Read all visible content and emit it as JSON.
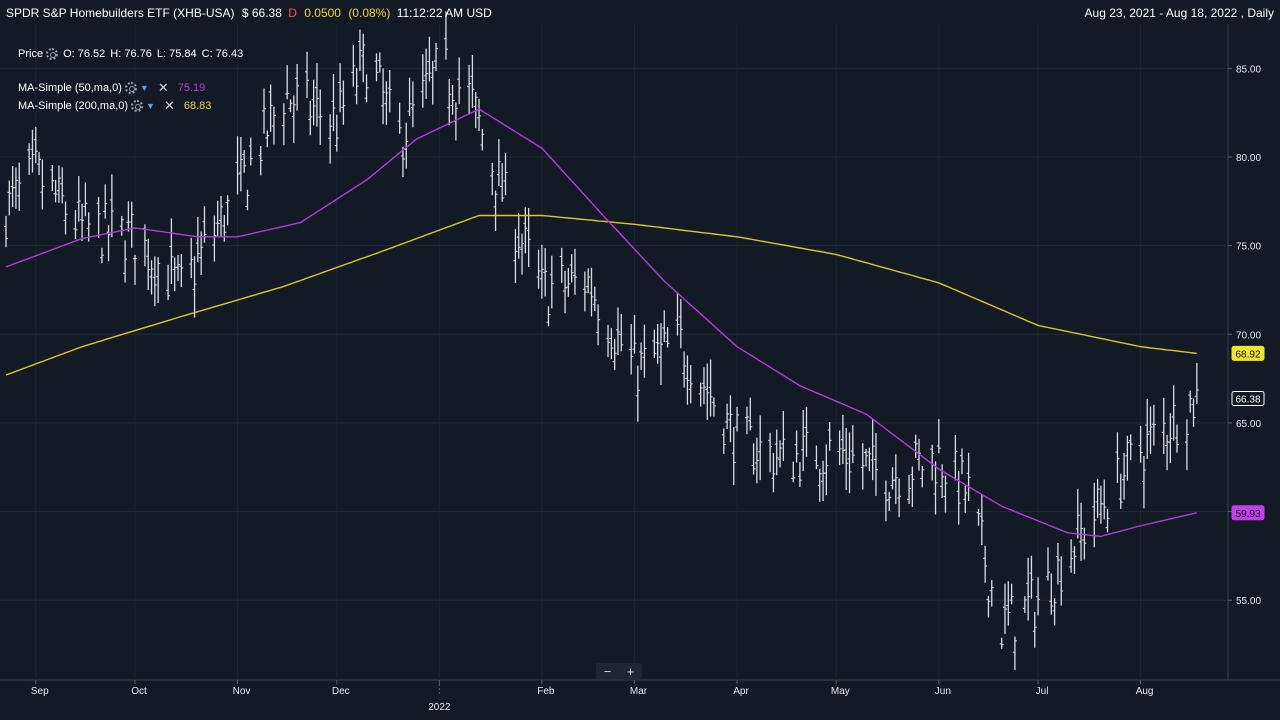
{
  "header": {
    "symbol_title": "SPDR S&P Homebuilders ETF (XHB-USA)",
    "price": "$ 66.38",
    "delayed_flag": "D",
    "change": "0.0500",
    "change_pct": "(0.08%)",
    "time": "11:12:22 AM USD",
    "date_range": "Aug 23, 2021 - Aug 18, 2022 , Daily"
  },
  "legend": {
    "price": {
      "label": "Price",
      "o": "O: 76.52",
      "h": "H: 76.76",
      "l": "L: 75.84",
      "c": "C: 76.43"
    },
    "ma50": {
      "label": "MA-Simple (50,ma,0)",
      "value": "75.19",
      "color": "#b03cd8"
    },
    "ma200": {
      "label": "MA-Simple (200,ma,0)",
      "value": "68.83",
      "color": "#d8c62a"
    }
  },
  "zoom": {
    "minus": "−",
    "plus": "+"
  },
  "chart_data": {
    "type": "line",
    "title": "SPDR S&P Homebuilders ETF (XHB-USA)",
    "xlabel": "",
    "ylabel": "",
    "x_tick_labels": [
      "Sep",
      "Oct",
      "Nov",
      "Dec",
      "2022",
      "Feb",
      "Mar",
      "Apr",
      "May",
      "Jun",
      "Jul",
      "Aug"
    ],
    "x_year_label": "2022",
    "y_tick_labels": [
      "55.00",
      "60.00",
      "65.00",
      "70.00",
      "75.00",
      "80.00",
      "85.00"
    ],
    "ylim": [
      50.5,
      87.5
    ],
    "grid": true,
    "last_value_labels": [
      {
        "series": "MA-Simple (200,ma,0)",
        "value": "68.92",
        "color": "#f2e530"
      },
      {
        "series": "Price",
        "value": "66.38",
        "color": "#ffffff"
      },
      {
        "series": "MA-Simple (50,ma,0)",
        "value": "59.93",
        "color": "#c33ee6"
      }
    ],
    "series": [
      {
        "name": "Price",
        "kind": "ohlc-bars",
        "x": [
          "2021-08-23",
          "2021-09-01",
          "2021-09-15",
          "2021-10-01",
          "2021-10-15",
          "2021-11-01",
          "2021-11-15",
          "2021-12-01",
          "2021-12-10",
          "2021-12-20",
          "2022-01-01",
          "2022-01-10",
          "2022-01-20",
          "2022-02-01",
          "2022-02-15",
          "2022-03-01",
          "2022-03-15",
          "2022-04-01",
          "2022-04-15",
          "2022-05-01",
          "2022-05-15",
          "2022-06-01",
          "2022-06-10",
          "2022-06-20",
          "2022-07-01",
          "2022-07-15",
          "2022-08-01",
          "2022-08-18"
        ],
        "values": [
          77.0,
          79.0,
          76.0,
          75.5,
          72.5,
          78.0,
          83.5,
          82.0,
          85.5,
          81.0,
          85.0,
          83.5,
          78.0,
          72.5,
          73.0,
          68.0,
          69.5,
          64.0,
          63.0,
          63.5,
          62.0,
          63.0,
          61.0,
          53.5,
          55.0,
          59.0,
          63.5,
          66.4
        ]
      },
      {
        "name": "MA-Simple (50,ma,0)",
        "x": [
          "2021-08-23",
          "2021-09-15",
          "2021-10-01",
          "2021-10-20",
          "2021-11-01",
          "2021-11-20",
          "2021-12-10",
          "2021-12-25",
          "2022-01-13",
          "2022-02-01",
          "2022-02-20",
          "2022-03-10",
          "2022-04-01",
          "2022-04-20",
          "2022-05-10",
          "2022-06-01",
          "2022-06-20",
          "2022-07-10",
          "2022-07-20",
          "2022-08-01",
          "2022-08-18"
        ],
        "values": [
          73.8,
          75.4,
          76.0,
          75.5,
          75.5,
          76.3,
          78.7,
          81.0,
          82.7,
          80.5,
          76.6,
          73.0,
          69.3,
          67.1,
          65.5,
          62.4,
          60.3,
          58.8,
          58.6,
          59.2,
          59.93
        ]
      },
      {
        "name": "MA-Simple (200,ma,0)",
        "x": [
          "2021-08-23",
          "2021-09-15",
          "2021-10-15",
          "2021-11-15",
          "2021-12-15",
          "2022-01-13",
          "2022-02-01",
          "2022-03-01",
          "2022-04-01",
          "2022-05-01",
          "2022-06-01",
          "2022-07-01",
          "2022-08-01",
          "2022-08-18"
        ],
        "values": [
          67.7,
          69.3,
          71.0,
          72.7,
          74.7,
          76.7,
          76.7,
          76.2,
          75.5,
          74.5,
          72.9,
          70.5,
          69.3,
          68.92
        ]
      }
    ]
  }
}
